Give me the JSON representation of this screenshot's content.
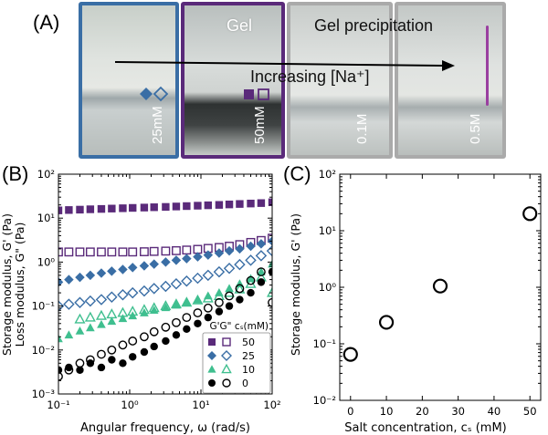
{
  "panels": {
    "a_label": "(A)",
    "b_label": "(B)",
    "c_label": "(C)"
  },
  "photo": {
    "gel_label": "Gel",
    "gel_precip_label": "Gel precipitation",
    "arrow_label": "Increasing [Na⁺]",
    "vial_labels": [
      "25mM",
      "50mM",
      "0.1M",
      "0.5M"
    ],
    "frame_colors": [
      "#3a6ea5",
      "#5a2a7a",
      "#aaaaaa",
      "#aaaaaa"
    ]
  },
  "chart_data": [
    {
      "type": "scatter",
      "panel": "B",
      "xlabel": "Angular frequency, ω (rad/s)",
      "ylabel_line1": "Storage modulus, G' (Pa)",
      "ylabel_line2": "Loss modulus, G\" (Pa)",
      "xscale": "log",
      "yscale": "log",
      "xlim": [
        0.1,
        100
      ],
      "ylim": [
        0.001,
        100
      ],
      "x_tick_labels": [
        "10⁻¹",
        "10⁰",
        "10¹",
        "10²"
      ],
      "y_tick_labels": [
        "10⁻³",
        "10⁻²",
        "10⁻¹",
        "10⁰",
        "10¹",
        "10²"
      ],
      "legend": {
        "title": "G'G\" cₛ(mM)",
        "entries": [
          "50",
          "25",
          "10",
          "0"
        ]
      },
      "series": [
        {
          "name": "G' 50mM",
          "marker": "square",
          "filled": true,
          "color": "#5a2a7a",
          "x": [
            0.1,
            0.14,
            0.2,
            0.28,
            0.4,
            0.56,
            0.8,
            1.1,
            1.6,
            2.2,
            3.2,
            4.5,
            6.3,
            9,
            12.6,
            18,
            25,
            35,
            50,
            70,
            100
          ],
          "y": [
            15,
            15.3,
            15.6,
            15.9,
            16.2,
            16.5,
            16.8,
            17.1,
            17.4,
            17.7,
            18,
            18.4,
            18.8,
            19.2,
            19.6,
            20,
            20.5,
            21,
            21.5,
            22,
            23
          ]
        },
        {
          "name": "G\" 50mM",
          "marker": "square",
          "filled": false,
          "color": "#5a2a7a",
          "x": [
            0.1,
            0.14,
            0.2,
            0.28,
            0.4,
            0.56,
            0.8,
            1.1,
            1.6,
            2.2,
            3.2,
            4.5,
            6.3,
            9,
            12.6,
            18,
            25,
            35,
            50,
            70,
            100
          ],
          "y": [
            1.7,
            1.7,
            1.7,
            1.7,
            1.7,
            1.7,
            1.7,
            1.7,
            1.72,
            1.75,
            1.78,
            1.82,
            1.88,
            1.95,
            2.05,
            2.15,
            2.3,
            2.5,
            2.8,
            3.1,
            3.5
          ]
        },
        {
          "name": "G' 25mM",
          "marker": "diamond",
          "filled": true,
          "color": "#3a6ea5",
          "x": [
            0.1,
            0.14,
            0.2,
            0.28,
            0.4,
            0.56,
            0.8,
            1.1,
            1.6,
            2.2,
            3.2,
            4.5,
            6.3,
            9,
            12.6,
            18,
            25,
            35,
            50,
            70,
            100
          ],
          "y": [
            0.35,
            0.4,
            0.45,
            0.5,
            0.56,
            0.62,
            0.68,
            0.75,
            0.82,
            0.9,
            1.0,
            1.1,
            1.2,
            1.32,
            1.45,
            1.6,
            1.8,
            2.0,
            2.3,
            2.6,
            3.0
          ]
        },
        {
          "name": "G\" 25mM",
          "marker": "diamond",
          "filled": false,
          "color": "#3a6ea5",
          "x": [
            0.1,
            0.14,
            0.2,
            0.28,
            0.4,
            0.56,
            0.8,
            1.1,
            1.6,
            2.2,
            3.2,
            4.5,
            6.3,
            9,
            12.6,
            18,
            25,
            35,
            50,
            70,
            100
          ],
          "y": [
            0.1,
            0.11,
            0.12,
            0.13,
            0.14,
            0.16,
            0.18,
            0.2,
            0.22,
            0.25,
            0.28,
            0.32,
            0.37,
            0.43,
            0.5,
            0.6,
            0.72,
            0.88,
            1.1,
            1.4,
            1.8
          ]
        },
        {
          "name": "G' 10mM",
          "marker": "triangle",
          "filled": true,
          "color": "#3fbf8f",
          "x": [
            0.1,
            0.14,
            0.2,
            0.28,
            0.4,
            0.56,
            0.8,
            1.1,
            1.6,
            2.2,
            3.2,
            4.5,
            6.3,
            9,
            12.6,
            18,
            25,
            35,
            50,
            70,
            100
          ],
          "y": [
            0.018,
            0.022,
            0.027,
            0.032,
            0.038,
            0.045,
            0.052,
            0.06,
            0.07,
            0.08,
            0.092,
            0.105,
            0.12,
            0.14,
            0.17,
            0.2,
            0.25,
            0.32,
            0.42,
            0.6,
            0.9
          ]
        },
        {
          "name": "G\" 10mM",
          "marker": "triangle",
          "filled": false,
          "color": "#3fbf8f",
          "x": [
            0.2,
            0.28,
            0.4,
            0.56,
            0.8,
            1.1,
            1.6,
            2.2,
            3.2,
            4.5,
            6.3,
            9,
            12.6,
            18,
            25,
            35,
            50,
            70,
            100
          ],
          "y": [
            0.05,
            0.055,
            0.06,
            0.065,
            0.07,
            0.075,
            0.082,
            0.09,
            0.1,
            0.11,
            0.12,
            0.135,
            0.15,
            0.17,
            0.2,
            0.24,
            0.32,
            0.45,
            0.2
          ]
        },
        {
          "name": "G' 0mM",
          "marker": "circle",
          "filled": true,
          "color": "#000000",
          "x": [
            0.1,
            0.14,
            0.2,
            0.28,
            0.4,
            0.56,
            0.8,
            1.1,
            1.6,
            2.2,
            3.2,
            4.5,
            6.3,
            9,
            12.6,
            18,
            25,
            35,
            50,
            70,
            100
          ],
          "y": [
            0.0035,
            0.004,
            0.0035,
            0.005,
            0.004,
            0.006,
            0.005,
            0.007,
            0.009,
            0.012,
            0.016,
            0.022,
            0.03,
            0.04,
            0.055,
            0.075,
            0.1,
            0.14,
            0.2,
            0.35,
            0.6
          ]
        },
        {
          "name": "G\" 0mM",
          "marker": "circle",
          "filled": false,
          "color": "#000000",
          "x": [
            0.1,
            0.14,
            0.2,
            0.28,
            0.4,
            0.56,
            0.8,
            1.1,
            1.6,
            2.2,
            3.2,
            4.5,
            6.3,
            9,
            12.6,
            18,
            25,
            35,
            50,
            70,
            100
          ],
          "y": [
            0.0025,
            0.0035,
            0.005,
            0.006,
            0.008,
            0.01,
            0.013,
            0.016,
            0.02,
            0.026,
            0.033,
            0.042,
            0.055,
            0.07,
            0.09,
            0.12,
            0.17,
            0.25,
            0.38,
            0.6,
            0.12
          ]
        }
      ]
    },
    {
      "type": "scatter",
      "panel": "C",
      "xlabel": "Salt concentration, cₛ (mM)",
      "ylabel": "Storage modulus, G' (Pa)",
      "xscale": "linear",
      "yscale": "log",
      "xlim": [
        -3,
        53
      ],
      "ylim": [
        0.01,
        100
      ],
      "x_ticks": [
        0,
        10,
        20,
        30,
        40,
        50
      ],
      "x_tick_labels": [
        "0",
        "10",
        "20",
        "30",
        "40",
        "50"
      ],
      "y_tick_labels": [
        "10⁻²",
        "10⁻¹",
        "10⁰",
        "10¹",
        "10²"
      ],
      "x": [
        0,
        10,
        25,
        50
      ],
      "y": [
        0.065,
        0.24,
        1.05,
        20
      ]
    }
  ]
}
